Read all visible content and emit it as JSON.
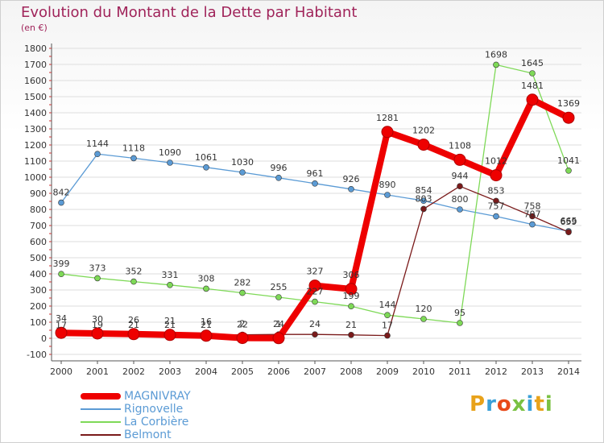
{
  "title": "Evolution du Montant de la Dette par Habitant",
  "subtitle": "(en €)",
  "logo_text": "Proxiti",
  "logo_colors": [
    "#e8a21a",
    "#3aa0d8",
    "#e84a1a",
    "#7ac142",
    "#3aa0d8",
    "#e8a21a",
    "#7ac142"
  ],
  "chart_data": {
    "type": "line",
    "title": "Evolution du Montant de la Dette par Habitant",
    "subtitle": "(en €)",
    "x": [
      "2000",
      "2001",
      "2002",
      "2003",
      "2004",
      "2005",
      "2006",
      "2007",
      "2008",
      "2009",
      "2010",
      "2011",
      "2012",
      "2013",
      "2014"
    ],
    "yticks": [
      "-100",
      "0",
      "100",
      "200",
      "300",
      "400",
      "500",
      "600",
      "700",
      "800",
      "900",
      "1000",
      "1100",
      "1200",
      "1300",
      "1400",
      "1500",
      "1600",
      "1700",
      "1800"
    ],
    "ylim": [
      -100,
      1800
    ],
    "grid": "horizontal",
    "legend_position": "bottom-left",
    "series": [
      {
        "name": "MAGNIVRAY",
        "color": "#ee0000",
        "width": 8,
        "marker": 7,
        "values": [
          34,
          30,
          26,
          21,
          16,
          2,
          1,
          327,
          306,
          1281,
          1202,
          1108,
          1012,
          1481,
          1369
        ],
        "labels": [
          "34",
          "30",
          "26",
          "21",
          "16",
          "2",
          "1",
          "327",
          "306",
          "1281",
          "1202",
          "1108",
          "1012",
          "1481",
          "1369"
        ]
      },
      {
        "name": "Rignovelle",
        "color": "#5b9bd5",
        "width": 1.3,
        "marker": 3.5,
        "values": [
          842,
          1144,
          1118,
          1090,
          1061,
          1030,
          996,
          961,
          926,
          890,
          854,
          800,
          757,
          707,
          665
        ],
        "labels": [
          "842",
          "1144",
          "1118",
          "1090",
          "1061",
          "1030",
          "996",
          "961",
          "926",
          "890",
          "854",
          "800",
          "757",
          "707",
          "665"
        ]
      },
      {
        "name": "La Corbière",
        "color": "#7ed957",
        "width": 1.3,
        "marker": 3.5,
        "values": [
          399,
          373,
          352,
          331,
          308,
          282,
          255,
          227,
          199,
          144,
          120,
          95,
          1698,
          1645,
          1041
        ],
        "labels": [
          "399",
          "373",
          "352",
          "331",
          "308",
          "282",
          "255",
          "227",
          "199",
          "144",
          "120",
          "95",
          "1698",
          "1645",
          "1041"
        ]
      },
      {
        "name": "Belmont",
        "color": "#7a1a1a",
        "width": 1.3,
        "marker": 3.5,
        "values": [
          17,
          19,
          21,
          21,
          21,
          22,
          24,
          24,
          21,
          17,
          803,
          944,
          853,
          758,
          659
        ],
        "labels": [
          "17",
          "19",
          "21",
          "21",
          "21",
          "22",
          "24",
          "24",
          "21",
          "17",
          "803",
          "944",
          "853",
          "758",
          "659"
        ]
      }
    ]
  }
}
